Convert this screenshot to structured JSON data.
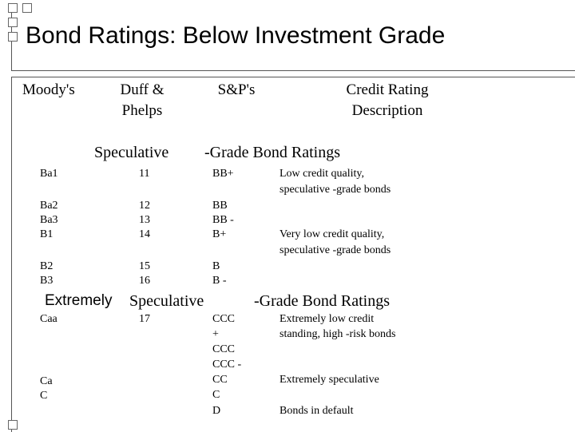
{
  "title": "Bond Ratings: Below Investment Grade",
  "headers": {
    "moodys": "Moody's",
    "duff_1": "Duff &",
    "duff_2": "Phelps",
    "sp": "S&P's",
    "credit_1": "Credit Rating",
    "credit_2": "Description"
  },
  "sections": {
    "speculative_a": "Speculative",
    "speculative_b": "-Grade Bond Ratings",
    "extreme_a": "Extremely",
    "extreme_b": "Speculative",
    "extreme_c": "-Grade Bond Ratings"
  },
  "rows": [
    {
      "moody": "Ba1",
      "duff": "11",
      "sp": "BB+",
      "desc1": "Low credit quality,",
      "desc2": "speculative -grade bonds"
    },
    {
      "moody": "Ba2",
      "duff": "12",
      "sp": "BB"
    },
    {
      "moody": "Ba3",
      "duff": "13",
      "sp": "BB -"
    },
    {
      "moody": "B1",
      "duff": "14",
      "sp": "B+",
      "desc1": "Very low credit quality,",
      "desc2": "speculative -grade bonds"
    },
    {
      "moody": "B2",
      "duff": "15",
      "sp": "B"
    },
    {
      "moody": "B3",
      "duff": "16",
      "sp": "B -"
    },
    {
      "moody": "Caa",
      "duff": "17",
      "sp_1": "CCC",
      "sp_2": "+",
      "sp_3": "CCC",
      "sp_4": "CCC -",
      "desc1": "Extremely low credit",
      "desc2": "standing, high -risk bonds"
    },
    {
      "moody": "Ca",
      "sp": "CC",
      "desc1": "Extremely speculative"
    },
    {
      "moody": "C",
      "sp": "C"
    },
    {
      "sp": "D",
      "desc1": "Bonds in default"
    }
  ]
}
